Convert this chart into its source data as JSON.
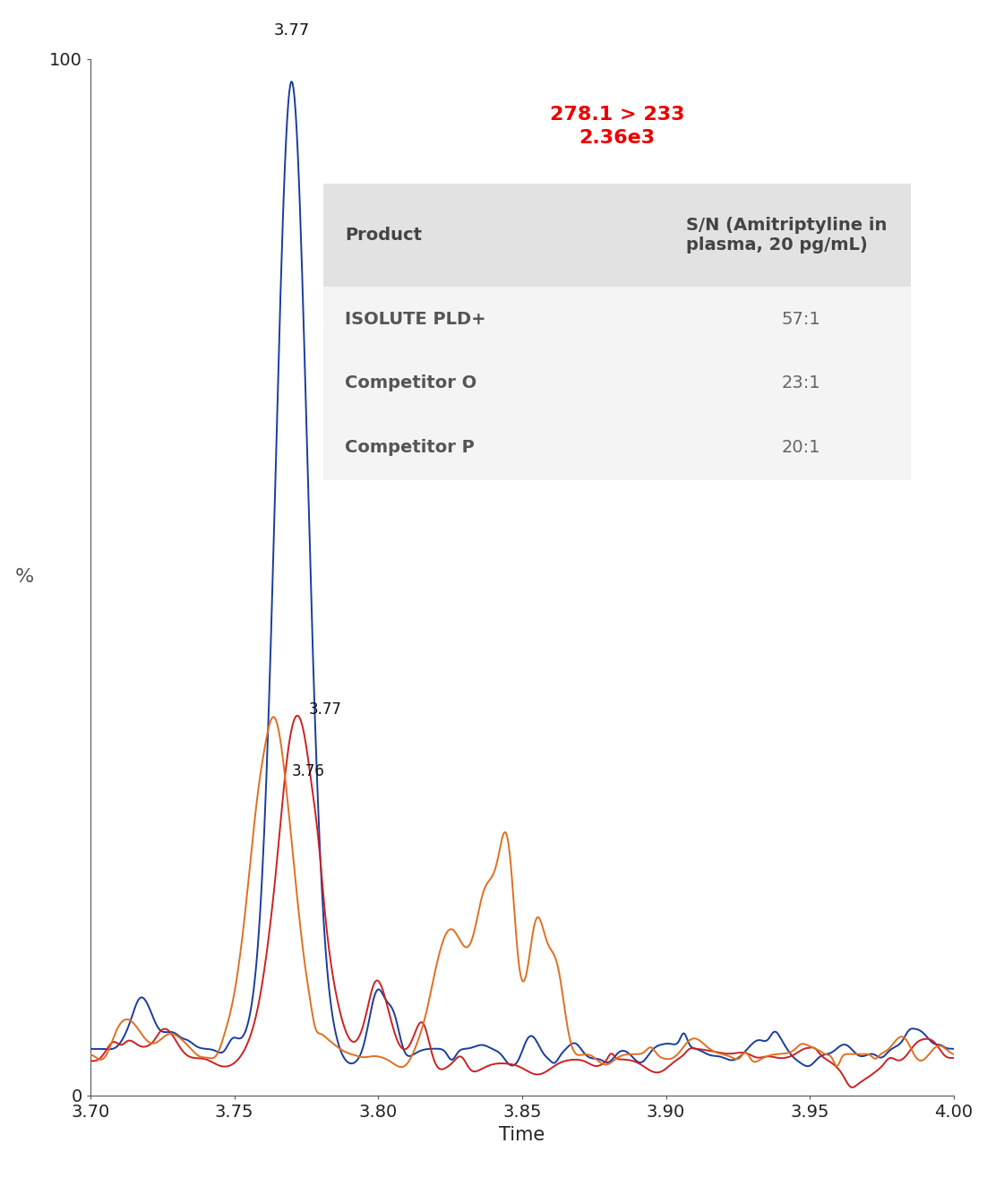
{
  "xlim": [
    3.7,
    4.0
  ],
  "ylim": [
    0,
    100
  ],
  "xlabel": "Time",
  "ylabel": "%",
  "annotation_peak_blue": "3.77",
  "annotation_peak_red": "3.77",
  "annotation_peak_orange": "3.76",
  "red_text_line1": "278.1 > 233",
  "red_text_line2": "2.36e3",
  "table_header_col1": "Product",
  "table_header_col2": "S/N (Amitriptyline in\nplasma, 20 pg/mL)",
  "table_rows": [
    [
      "ISOLUTE PLD+",
      "57:1"
    ],
    [
      "Competitor O",
      "23:1"
    ],
    [
      "Competitor P",
      "20:1"
    ]
  ],
  "blue_color": "#1a3d9e",
  "red_color": "#cc2222",
  "orange_color": "#e07020",
  "background_color": "#ffffff",
  "xticks": [
    3.7,
    3.75,
    3.8,
    3.85,
    3.9,
    3.95,
    4.0
  ],
  "yticks": [
    0,
    100
  ]
}
